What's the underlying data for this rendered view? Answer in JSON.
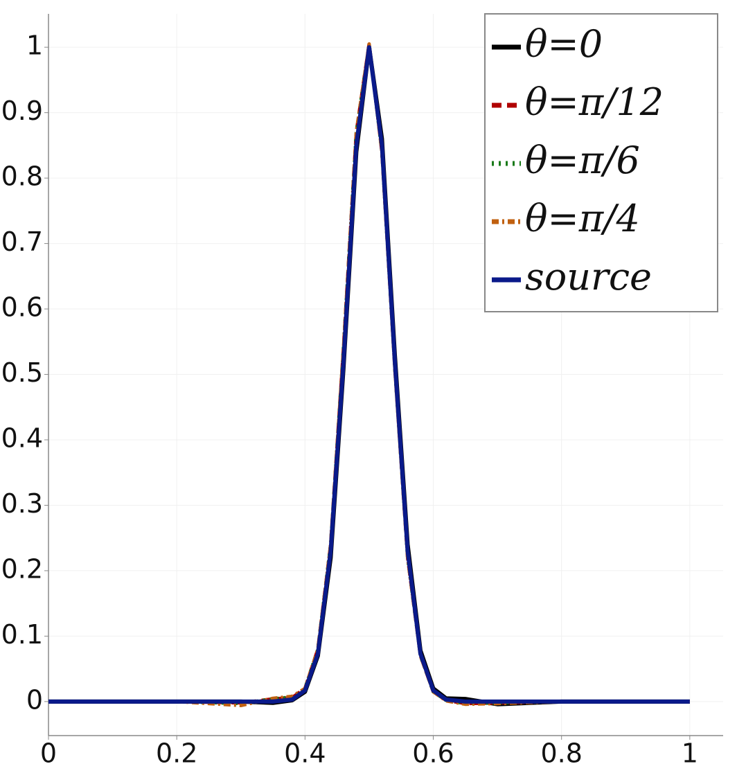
{
  "chart_data": {
    "type": "line",
    "x": [
      0,
      0.1,
      0.2,
      0.3,
      0.35,
      0.38,
      0.4,
      0.42,
      0.44,
      0.46,
      0.48,
      0.5,
      0.52,
      0.54,
      0.56,
      0.58,
      0.6,
      0.62,
      0.65,
      0.7,
      0.8,
      0.9,
      1
    ],
    "series": [
      {
        "name": "θ=0",
        "color": "#000000",
        "style": "solid",
        "values": [
          0,
          0,
          0,
          0,
          -0.002,
          0.002,
          0.015,
          0.07,
          0.22,
          0.51,
          0.84,
          1,
          0.86,
          0.53,
          0.24,
          0.078,
          0.02,
          0.005,
          0.004,
          -0.004,
          0,
          0,
          0
        ]
      },
      {
        "name": "θ=π/12",
        "color": "#b00000",
        "style": "dashed",
        "values": [
          0,
          0,
          0,
          -0.002,
          0.004,
          0.006,
          0.02,
          0.08,
          0.24,
          0.54,
          0.87,
          1.005,
          0.84,
          0.51,
          0.22,
          0.07,
          0.015,
          0.002,
          -0.003,
          -0.002,
          0,
          0,
          0
        ]
      },
      {
        "name": "θ=π/6",
        "color": "#1a7a1a",
        "style": "dotted",
        "values": [
          0,
          0,
          0,
          -0.003,
          0.004,
          0.007,
          0.02,
          0.08,
          0.24,
          0.54,
          0.87,
          1.003,
          0.84,
          0.51,
          0.22,
          0.07,
          0.015,
          0.002,
          -0.003,
          -0.002,
          0,
          0,
          0
        ]
      },
      {
        "name": "θ=π/4",
        "color": "#c06010",
        "style": "dashdot",
        "values": [
          0,
          0,
          0,
          -0.006,
          0.005,
          0.008,
          0.02,
          0.08,
          0.24,
          0.54,
          0.87,
          1.005,
          0.84,
          0.51,
          0.22,
          0.07,
          0.015,
          0.001,
          -0.004,
          -0.003,
          0,
          0,
          0
        ]
      },
      {
        "name": "source",
        "color": "#0a1a8a",
        "style": "solid",
        "values": [
          0,
          0,
          0,
          0,
          0,
          0.003,
          0.017,
          0.073,
          0.23,
          0.52,
          0.85,
          1,
          0.85,
          0.52,
          0.23,
          0.073,
          0.017,
          0.003,
          0,
          0,
          0,
          0,
          0
        ]
      }
    ],
    "xlim": [
      0,
      1.052
    ],
    "ylim": [
      -0.052,
      1.051
    ],
    "xticks": [
      0,
      0.2,
      0.4,
      0.6,
      0.8,
      1
    ],
    "yticks": [
      0,
      0.1,
      0.2,
      0.3,
      0.4,
      0.5,
      0.6,
      0.7,
      0.8,
      0.9,
      1
    ],
    "grid": true,
    "legend": "top-right"
  }
}
